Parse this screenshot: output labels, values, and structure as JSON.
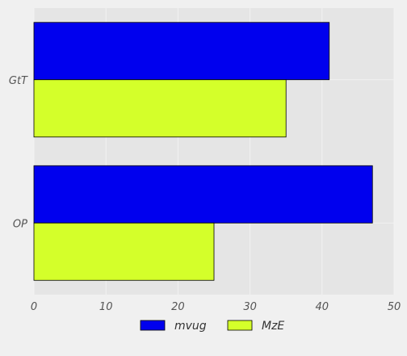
{
  "chart_data": {
    "type": "bar",
    "orientation": "horizontal",
    "categories": [
      "GtT",
      "OP"
    ],
    "series": [
      {
        "name": "mvug",
        "values": [
          41,
          47
        ],
        "color": "#0000ee"
      },
      {
        "name": "MzE",
        "values": [
          35,
          25
        ],
        "color": "#d4ff2a"
      }
    ],
    "xlim": [
      0,
      50
    ],
    "xticks": [
      0,
      10,
      20,
      30,
      40,
      50
    ],
    "grid": true,
    "legend_position": "bottom"
  },
  "colors": {
    "background": "#f0f0f0",
    "plot_background": "#e5e5e5",
    "grid": "#f2f2f2"
  }
}
